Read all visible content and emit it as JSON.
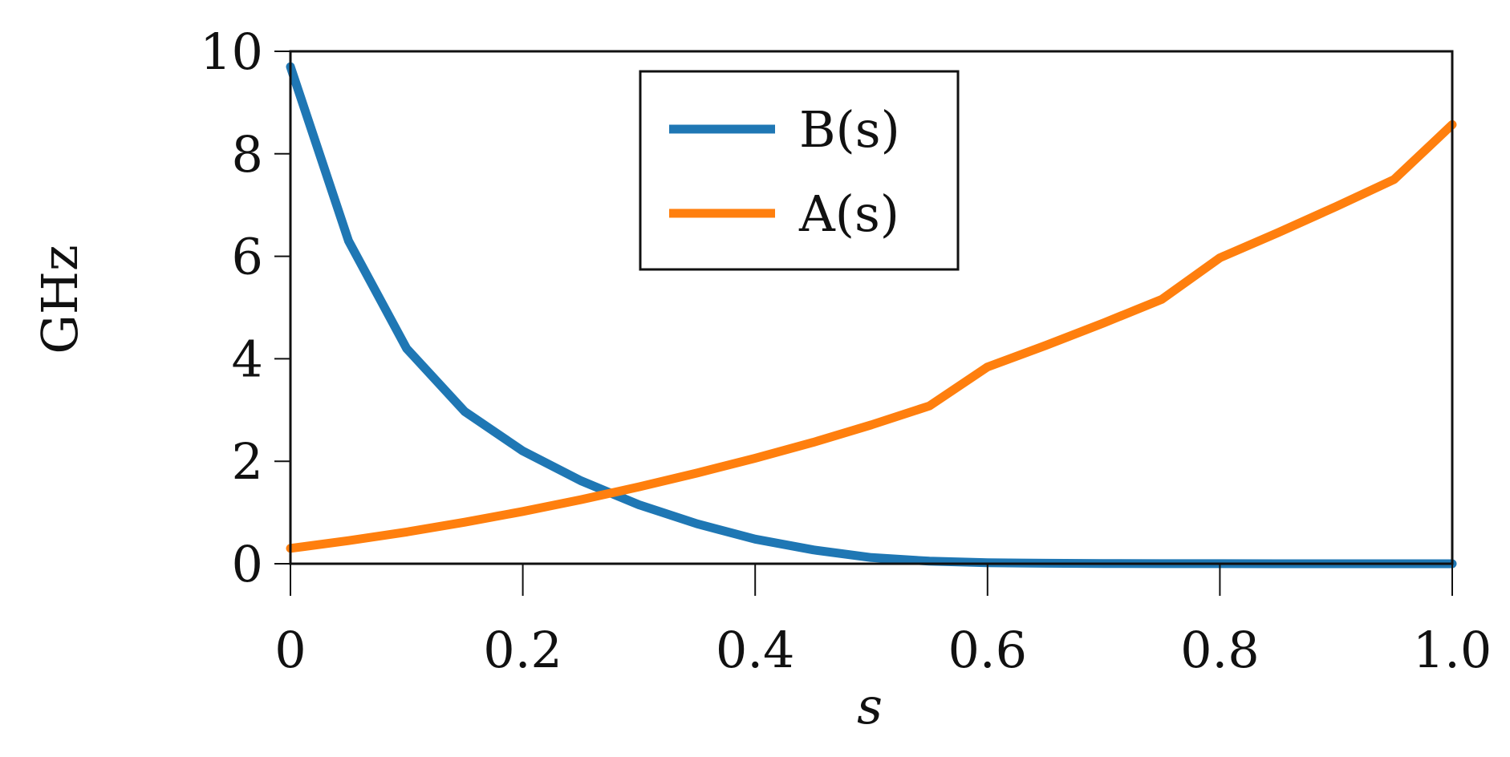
{
  "chart_data": {
    "type": "line",
    "title": "",
    "xlabel": "s",
    "ylabel": "GHz",
    "xlim": [
      0,
      1.0
    ],
    "ylim": [
      0,
      10
    ],
    "x_ticks": [
      "0",
      "0.2",
      "0.4",
      "0.6",
      "0.8",
      "1.0"
    ],
    "y_ticks": [
      "0",
      "2",
      "4",
      "6",
      "8",
      "10"
    ],
    "legend_position": "top-center",
    "grid": false,
    "series": [
      {
        "name": "B(s)",
        "color": "#1f77b4",
        "x": [
          0,
          0.05,
          0.1,
          0.15,
          0.2,
          0.25,
          0.3,
          0.35,
          0.4,
          0.45,
          0.5,
          0.55,
          0.6,
          0.65,
          0.7,
          0.75,
          0.8,
          0.85,
          0.9,
          0.95,
          1.0
        ],
        "values": [
          9.7,
          6.3,
          4.2,
          2.97,
          2.2,
          1.62,
          1.15,
          0.78,
          0.48,
          0.27,
          0.12,
          0.05,
          0.02,
          0.01,
          0.005,
          0.002,
          0.001,
          0.0,
          0.0,
          0.0,
          0.0
        ]
      },
      {
        "name": "A(s)",
        "color": "#ff7f0e",
        "x": [
          0,
          0.05,
          0.1,
          0.15,
          0.2,
          0.25,
          0.3,
          0.35,
          0.4,
          0.45,
          0.5,
          0.55,
          0.6,
          0.65,
          0.7,
          0.75,
          0.8,
          0.85,
          0.9,
          0.95,
          1.0
        ],
        "values": [
          0.3,
          0.45,
          0.62,
          0.81,
          1.02,
          1.25,
          1.5,
          1.77,
          2.06,
          2.37,
          2.71,
          3.08,
          3.84,
          4.26,
          4.7,
          5.16,
          5.97,
          6.46,
          6.97,
          7.5,
          8.57
        ]
      }
    ]
  }
}
